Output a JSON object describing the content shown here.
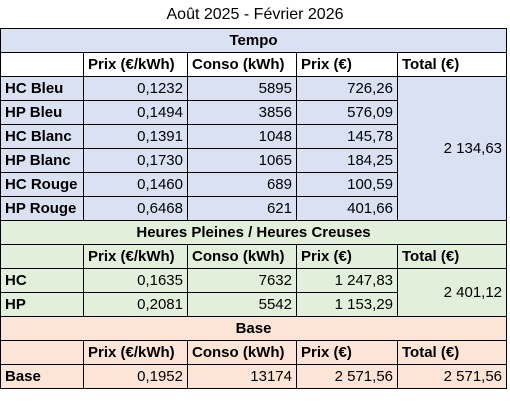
{
  "title": "Août 2025 - Février 2026",
  "colors": {
    "tempo": "#d9e1f2",
    "hphc": "#e2efda",
    "base": "#fce4d6"
  },
  "headers": {
    "prix_kwh": "Prix (€/kWh)",
    "conso": "Conso (kWh)",
    "prix": "Prix (€)",
    "total": "Total (€)"
  },
  "sections": [
    {
      "name": "Tempo",
      "total": "2 134,63",
      "rows": [
        {
          "label": "HC Bleu",
          "prix_kwh": "0,1232",
          "conso": "5895",
          "prix": "726,26"
        },
        {
          "label": "HP Bleu",
          "prix_kwh": "0,1494",
          "conso": "3856",
          "prix": "576,09"
        },
        {
          "label": "HC Blanc",
          "prix_kwh": "0,1391",
          "conso": "1048",
          "prix": "145,78"
        },
        {
          "label": "HP Blanc",
          "prix_kwh": "0,1730",
          "conso": "1065",
          "prix": "184,25"
        },
        {
          "label": "HC Rouge",
          "prix_kwh": "0,1460",
          "conso": "689",
          "prix": "100,59"
        },
        {
          "label": "HP Rouge",
          "prix_kwh": "0,6468",
          "conso": "621",
          "prix": "401,66"
        }
      ]
    },
    {
      "name": "Heures Pleines / Heures Creuses",
      "total": "2 401,12",
      "rows": [
        {
          "label": "HC",
          "prix_kwh": "0,1635",
          "conso": "7632",
          "prix": "1 247,83"
        },
        {
          "label": "HP",
          "prix_kwh": "0,2081",
          "conso": "5542",
          "prix": "1 153,29"
        }
      ]
    },
    {
      "name": "Base",
      "total": "2 571,56",
      "rows": [
        {
          "label": "Base",
          "prix_kwh": "0,1952",
          "conso": "13174",
          "prix": "2 571,56"
        }
      ]
    }
  ]
}
